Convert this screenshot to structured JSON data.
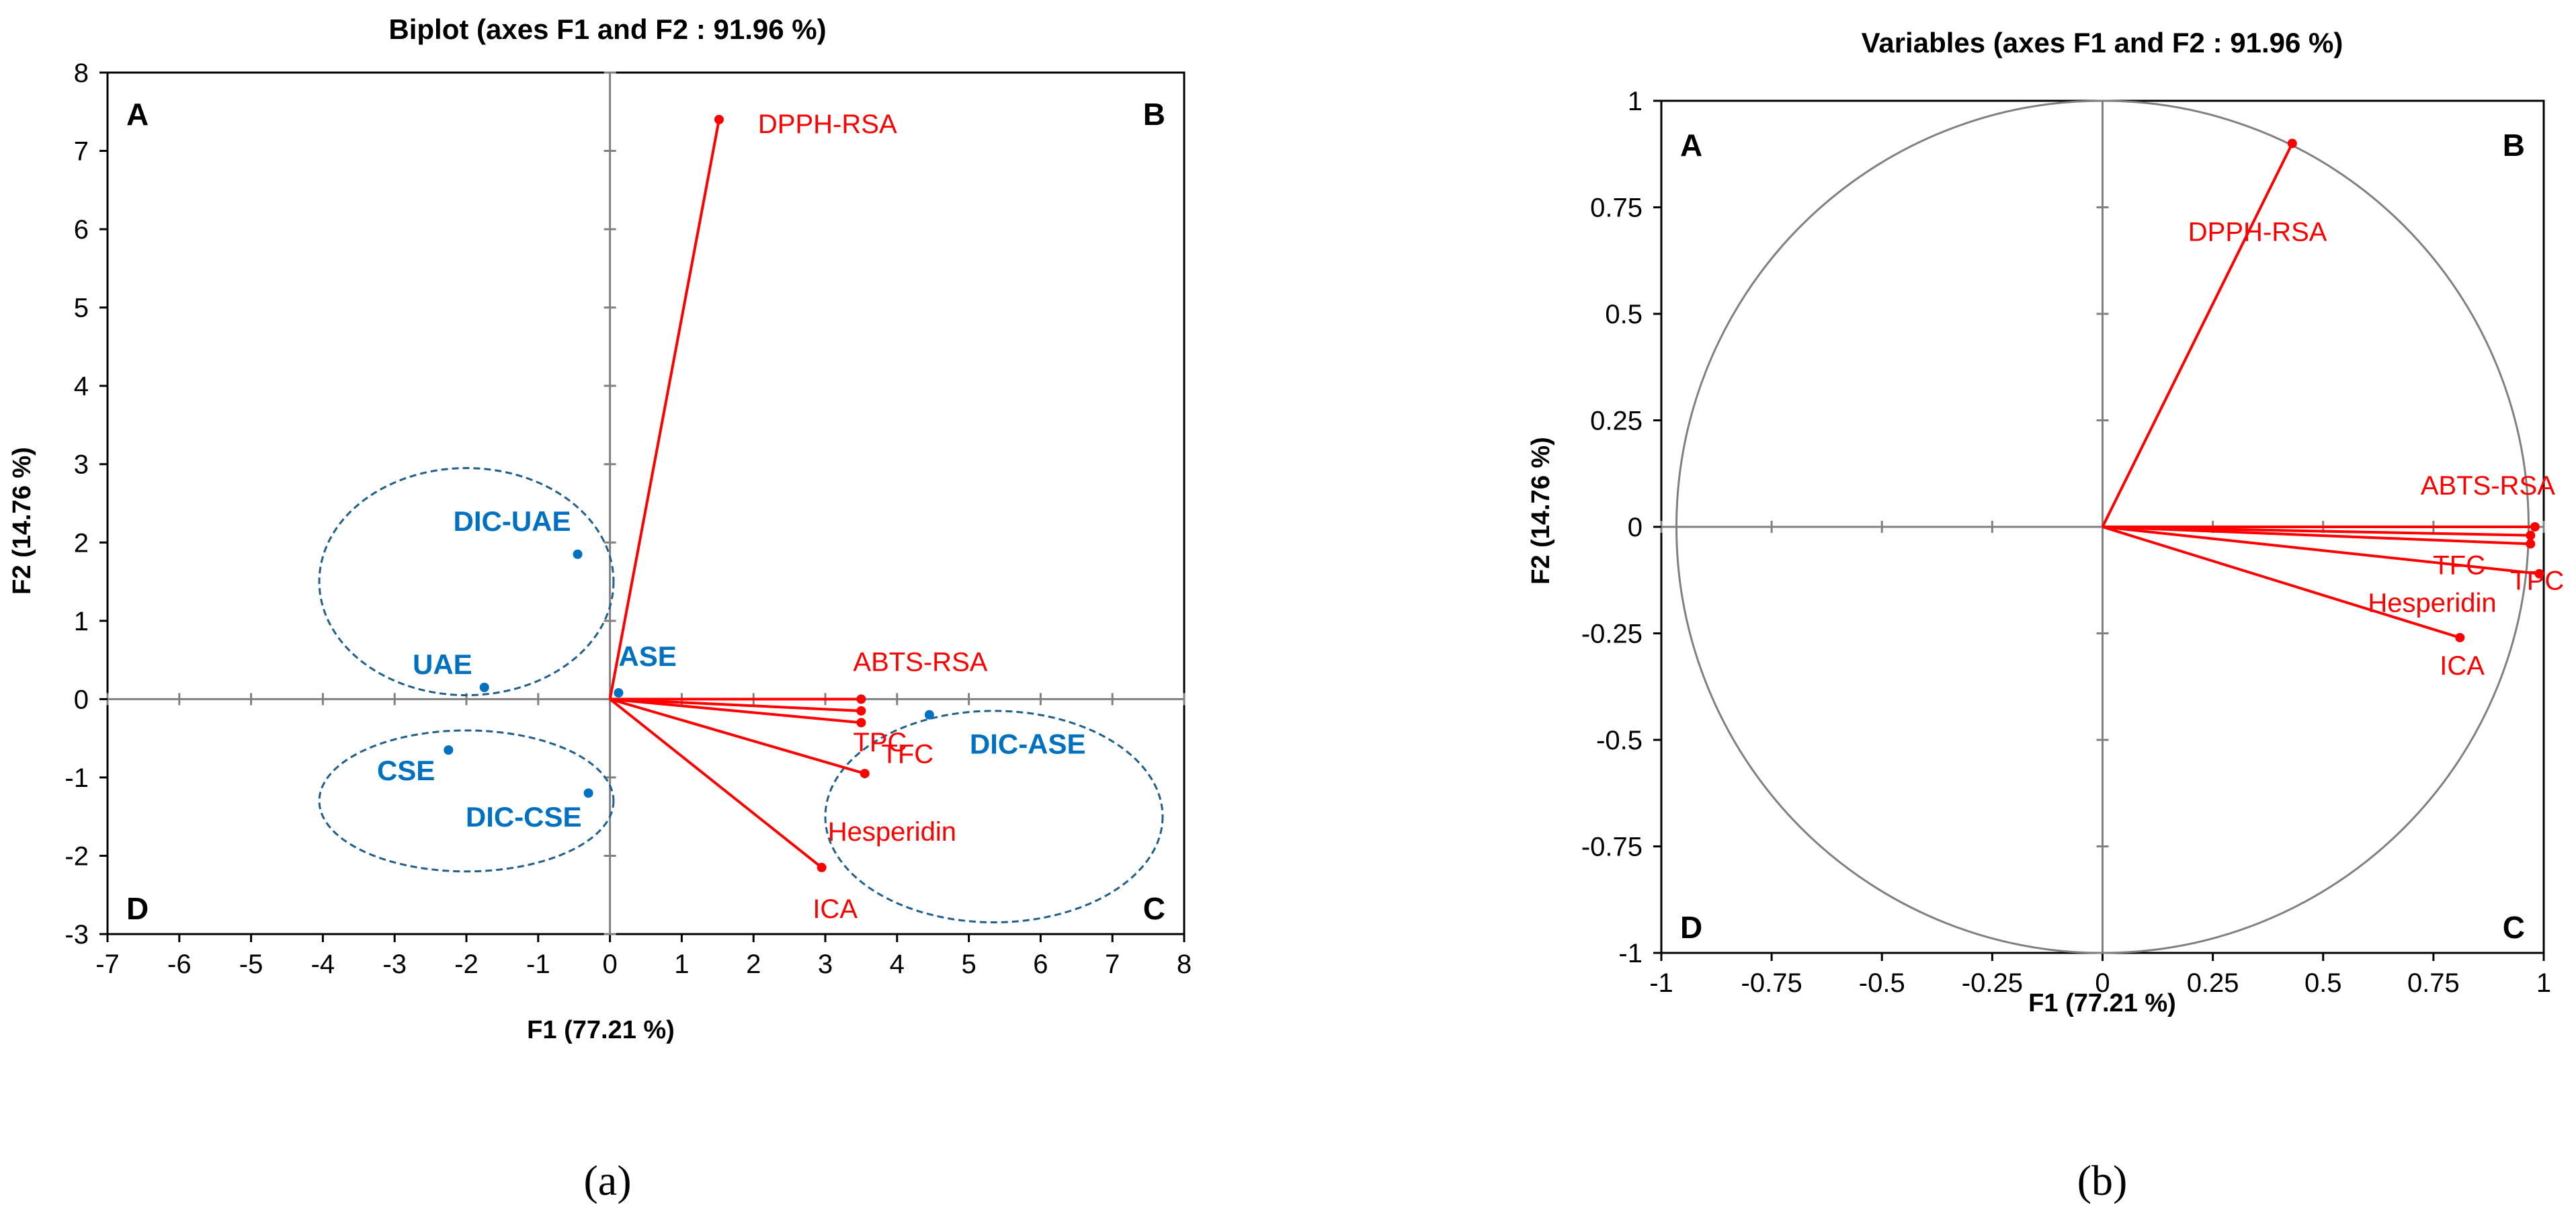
{
  "chart_data": [
    {
      "type": "scatter",
      "panel_label": "(a)",
      "title": "Biplot (axes F1 and F2 : 91.96 %)",
      "xlabel": "F1 (77.21 %)",
      "ylabel": "F2 (14.76 %)",
      "xlim": [
        -7,
        8
      ],
      "ylim": [
        -3,
        8
      ],
      "xticks": [
        -7,
        -6,
        -5,
        -4,
        -3,
        -2,
        -1,
        0,
        1,
        2,
        3,
        4,
        5,
        6,
        7,
        8
      ],
      "yticks": [
        -3,
        -2,
        -1,
        0,
        1,
        2,
        3,
        4,
        5,
        6,
        7,
        8
      ],
      "quadrant_labels": [
        "A",
        "B",
        "C",
        "D"
      ],
      "variables": [
        {
          "name": "DPPH-RSA",
          "x": 1.52,
          "y": 7.4
        },
        {
          "name": "ABTS-RSA",
          "x": 3.5,
          "y": 0.0
        },
        {
          "name": "TPC",
          "x": 3.5,
          "y": -0.15
        },
        {
          "name": "TFC",
          "x": 3.5,
          "y": -0.3
        },
        {
          "name": "Hesperidin",
          "x": 3.55,
          "y": -0.95
        },
        {
          "name": "ICA",
          "x": 2.95,
          "y": -2.15
        }
      ],
      "observations": [
        {
          "name": "DIC-UAE",
          "x": -0.45,
          "y": 1.85
        },
        {
          "name": "UAE",
          "x": -1.75,
          "y": 0.15
        },
        {
          "name": "ASE",
          "x": 0.12,
          "y": 0.08
        },
        {
          "name": "CSE",
          "x": -2.25,
          "y": -0.65
        },
        {
          "name": "DIC-CSE",
          "x": -0.3,
          "y": -1.2
        },
        {
          "name": "DIC-ASE",
          "x": 4.45,
          "y": -0.2
        }
      ],
      "groups": [
        {
          "cx": -2.0,
          "cy": 1.5,
          "rx": 2.05,
          "ry": 1.45
        },
        {
          "cx": -2.0,
          "cy": -1.3,
          "rx": 2.05,
          "ry": 0.9
        },
        {
          "cx": 5.35,
          "cy": -1.5,
          "rx": 2.35,
          "ry": 1.35
        }
      ]
    },
    {
      "type": "scatter",
      "panel_label": "(b)",
      "title": "Variables (axes F1 and F2 : 91.96 %)",
      "xlabel": "F1 (77.21 %)",
      "ylabel": "F2 (14.76 %)",
      "xlim": [
        -1,
        1
      ],
      "ylim": [
        -1,
        1
      ],
      "xticks": [
        -1,
        -0.75,
        -0.5,
        -0.25,
        0,
        0.25,
        0.5,
        0.75,
        1
      ],
      "yticks": [
        -1,
        -0.75,
        -0.5,
        -0.25,
        0,
        0.25,
        0.5,
        0.75,
        1
      ],
      "quadrant_labels": [
        "A",
        "B",
        "C",
        "D"
      ],
      "variables": [
        {
          "name": "DPPH-RSA",
          "x": 0.43,
          "y": 0.9
        },
        {
          "name": "ABTS-RSA",
          "x": 0.98,
          "y": 0.0
        },
        {
          "name": "TFC",
          "x": 0.97,
          "y": -0.02
        },
        {
          "name": "TPC",
          "x": 0.97,
          "y": -0.04
        },
        {
          "name": "Hesperidin",
          "x": 0.99,
          "y": -0.11
        },
        {
          "name": "ICA",
          "x": 0.81,
          "y": -0.26
        }
      ]
    }
  ]
}
